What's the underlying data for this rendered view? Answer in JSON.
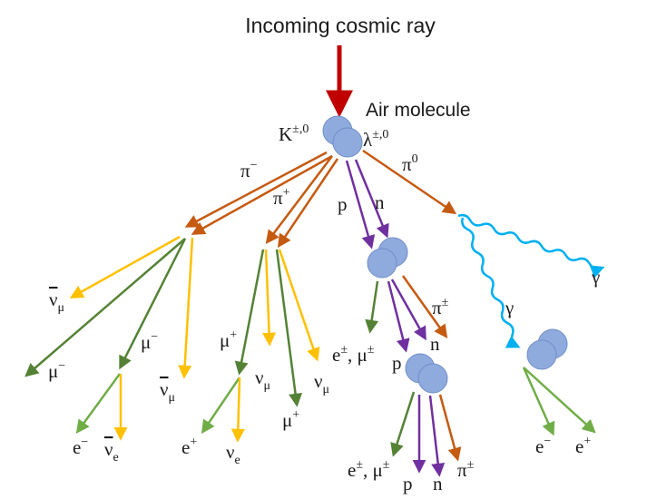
{
  "title": "Incoming cosmic ray",
  "air_molecule": "Air molecule",
  "labels": {
    "kaon": "K",
    "kaon_charge": "±,0",
    "lambda": "λ",
    "lambda_charge": "±,0",
    "pi_minus": "π",
    "pi_minus_charge": "−",
    "pi_plus": "π",
    "pi_plus_charge": "+",
    "pi_zero": "π",
    "pi_zero_charge": "0",
    "proton": "p",
    "neutron": "n",
    "gamma_1": "γ",
    "gamma_2": "γ",
    "antinu_mu_1": "ν",
    "antinu_mu_1_sub": "μ",
    "mu_minus_1": "μ",
    "mu_minus_1_charge": "−",
    "mu_minus_2": "μ",
    "mu_minus_2_charge": "−",
    "antinu_mu_2": "ν",
    "antinu_mu_2_sub": "μ",
    "electron_1": "e",
    "electron_1_charge": "−",
    "antinu_e": "ν",
    "antinu_e_sub": "e",
    "mu_plus_1": "μ",
    "mu_plus_1_charge": "+",
    "nu_mu_1": "ν",
    "nu_mu_1_sub": "μ",
    "positron_1": "e",
    "positron_1_charge": "+",
    "nu_e": "ν",
    "nu_e_sub": "e",
    "mu_plus_2": "μ",
    "mu_plus_2_charge": "+",
    "nu_mu_2": "ν",
    "nu_mu_2_sub": "μ",
    "pion_charged_1": "π",
    "pion_charged_1_charge": "±",
    "lepton_mix_1": "e",
    "lepton_mix_1_charge": "±",
    "lepton_mix_1_sep": ", μ",
    "lepton_mix_1_charge2": "±",
    "proton_2": "p",
    "neutron_2": "n",
    "lepton_mix_2": "e",
    "lepton_mix_2_charge": "±",
    "lepton_mix_2_sep": ", μ",
    "lepton_mix_2_charge2": "±",
    "proton_3": "p",
    "neutron_3": "n",
    "pion_charged_2": "π",
    "pion_charged_2_charge": "±",
    "electron_2": "e",
    "electron_2_charge": "−",
    "positron_2": "e",
    "positron_2_charge": "+"
  },
  "colors": {
    "primary_arrow": "#c00000",
    "pion_track": "#c55a11",
    "hadron_track": "#7030a0",
    "neutrino_track": "#ffc000",
    "muon_track": "#548235",
    "electron_track": "#70ad47",
    "photon_track": "#00b0f0",
    "nucleus": "#8faadc"
  }
}
